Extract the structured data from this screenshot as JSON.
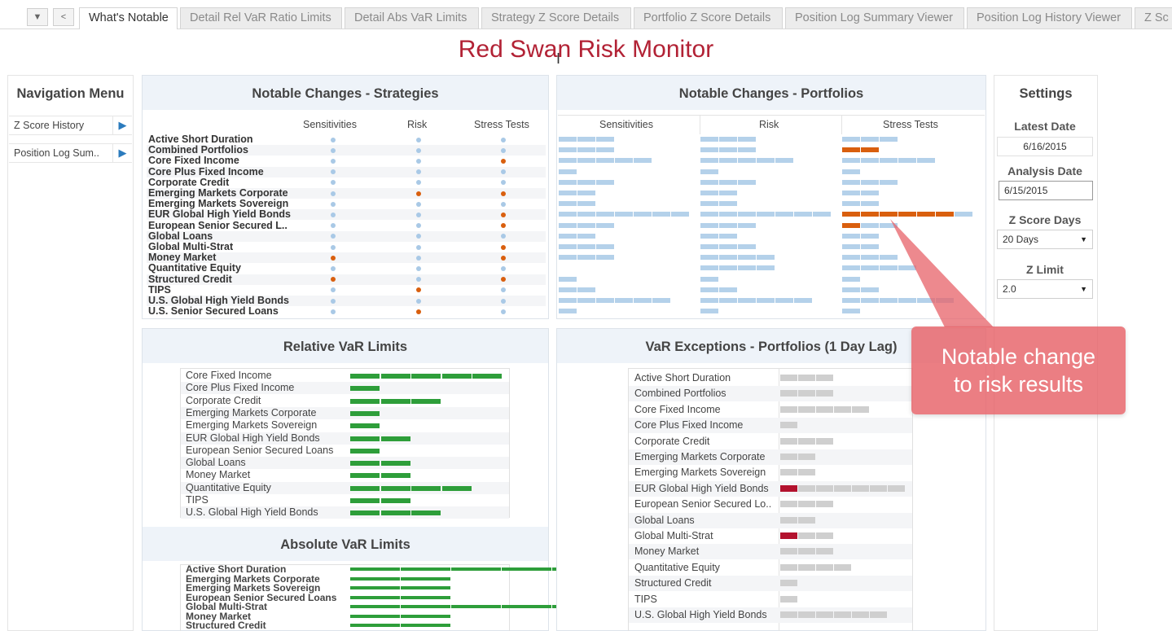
{
  "tabs": {
    "items": [
      "What's Notable",
      "Detail Rel VaR Ratio Limits",
      "Detail Abs VaR Limits",
      "Strategy Z Score Details",
      "Portfolio Z Score Details",
      "Position Log Summary Viewer",
      "Position Log History Viewer",
      "Z Sc"
    ],
    "active": "What's Notable"
  },
  "title": "Red Swan Risk Monitor",
  "nav": {
    "title": "Navigation Menu",
    "items": [
      "Z Score History",
      "Position Log Sum.."
    ]
  },
  "strategies": {
    "title": "Notable Changes - Strategies",
    "columns": [
      "Sensitivities",
      "Risk",
      "Stress Tests"
    ],
    "rows": [
      {
        "name": "Active Short Duration",
        "flags": [
          "b",
          "b",
          "b"
        ]
      },
      {
        "name": "Combined Portfolios",
        "flags": [
          "b",
          "b",
          "b"
        ]
      },
      {
        "name": "Core Fixed Income",
        "flags": [
          "b",
          "b",
          "o"
        ]
      },
      {
        "name": "Core Plus Fixed Income",
        "flags": [
          "b",
          "b",
          "b"
        ]
      },
      {
        "name": "Corporate Credit",
        "flags": [
          "b",
          "b",
          "b"
        ]
      },
      {
        "name": "Emerging Markets Corporate",
        "flags": [
          "b",
          "o",
          "o"
        ]
      },
      {
        "name": "Emerging Markets Sovereign",
        "flags": [
          "b",
          "b",
          "b"
        ]
      },
      {
        "name": "EUR Global High Yield Bonds",
        "flags": [
          "b",
          "b",
          "o"
        ]
      },
      {
        "name": "European Senior Secured L..",
        "flags": [
          "b",
          "b",
          "o"
        ]
      },
      {
        "name": "Global Loans",
        "flags": [
          "b",
          "b",
          "b"
        ]
      },
      {
        "name": "Global Multi-Strat",
        "flags": [
          "b",
          "b",
          "o"
        ]
      },
      {
        "name": "Money Market",
        "flags": [
          "o",
          "b",
          "o"
        ]
      },
      {
        "name": "Quantitative Equity",
        "flags": [
          "b",
          "b",
          "b"
        ]
      },
      {
        "name": "Structured Credit",
        "flags": [
          "o",
          "b",
          "o"
        ]
      },
      {
        "name": "TIPS",
        "flags": [
          "b",
          "o",
          "b"
        ]
      },
      {
        "name": "U.S. Global High Yield Bonds",
        "flags": [
          "b",
          "b",
          "b"
        ]
      },
      {
        "name": "U.S. Senior Secured Loans",
        "flags": [
          "b",
          "o",
          "b"
        ]
      }
    ]
  },
  "portfolios": {
    "title": "Notable Changes - Portfolios",
    "columns": [
      "Sensitivities",
      "Risk",
      "Stress Tests"
    ],
    "rows": [
      {
        "sens": 3,
        "risk": 3,
        "stress": 3,
        "stress_orange": 0
      },
      {
        "sens": 3,
        "risk": 3,
        "stress": 2,
        "stress_orange": 2
      },
      {
        "sens": 5,
        "risk": 5,
        "stress": 5,
        "stress_orange": 0
      },
      {
        "sens": 1,
        "risk": 1,
        "stress": 1,
        "stress_orange": 0
      },
      {
        "sens": 3,
        "risk": 3,
        "stress": 3,
        "stress_orange": 0
      },
      {
        "sens": 2,
        "risk": 2,
        "stress": 2,
        "stress_orange": 0
      },
      {
        "sens": 2,
        "risk": 2,
        "stress": 2,
        "stress_orange": 0
      },
      {
        "sens": 7,
        "risk": 7,
        "stress": 7,
        "stress_orange": 6
      },
      {
        "sens": 3,
        "risk": 3,
        "stress": 3,
        "stress_orange": 1
      },
      {
        "sens": 2,
        "risk": 2,
        "stress": 2,
        "stress_orange": 0
      },
      {
        "sens": 3,
        "risk": 3,
        "stress": 2,
        "stress_orange": 0
      },
      {
        "sens": 3,
        "risk": 4,
        "stress": 3,
        "stress_orange": 0
      },
      {
        "sens": 0,
        "risk": 4,
        "stress": 4,
        "stress_orange": 0
      },
      {
        "sens": 1,
        "risk": 1,
        "stress": 1,
        "stress_orange": 0
      },
      {
        "sens": 2,
        "risk": 2,
        "stress": 2,
        "stress_orange": 0
      },
      {
        "sens": 6,
        "risk": 6,
        "stress": 6,
        "stress_orange": 0
      },
      {
        "sens": 1,
        "risk": 1,
        "stress": 1,
        "stress_orange": 0
      }
    ]
  },
  "relative_var": {
    "title": "Relative VaR Limits",
    "rows": [
      {
        "name": "Core Fixed Income",
        "value": 5
      },
      {
        "name": "Core Plus Fixed Income",
        "value": 1
      },
      {
        "name": "Corporate Credit",
        "value": 3
      },
      {
        "name": "Emerging Markets Corporate",
        "value": 1
      },
      {
        "name": "Emerging Markets Sovereign",
        "value": 1
      },
      {
        "name": "EUR Global High Yield Bonds",
        "value": 2
      },
      {
        "name": "European Senior Secured Loans",
        "value": 1
      },
      {
        "name": "Global Loans",
        "value": 2
      },
      {
        "name": "Money Market",
        "value": 2
      },
      {
        "name": "Quantitative Equity",
        "value": 4
      },
      {
        "name": "TIPS",
        "value": 2
      },
      {
        "name": "U.S. Global High Yield Bonds",
        "value": 3
      }
    ]
  },
  "absolute_var": {
    "title": "Absolute VaR Limits",
    "rows": [
      {
        "name": "Active Short Duration",
        "value": 5
      },
      {
        "name": "Emerging Markets Corporate",
        "value": 2
      },
      {
        "name": "Emerging Markets Sovereign",
        "value": 2
      },
      {
        "name": "European Senior Secured Loans",
        "value": 2
      },
      {
        "name": "Global Multi-Strat",
        "value": 5
      },
      {
        "name": "Money Market",
        "value": 2
      },
      {
        "name": "Structured Credit",
        "value": 2
      }
    ]
  },
  "var_exceptions": {
    "title": "VaR Exceptions - Portfolios (1 Day Lag)",
    "rows": [
      {
        "name": "Active Short Duration",
        "grey": 3,
        "red": 0
      },
      {
        "name": "Combined Portfolios",
        "grey": 3,
        "red": 0
      },
      {
        "name": "Core Fixed Income",
        "grey": 5,
        "red": 0
      },
      {
        "name": "Core Plus Fixed Income",
        "grey": 1,
        "red": 0
      },
      {
        "name": "Corporate Credit",
        "grey": 3,
        "red": 0
      },
      {
        "name": "Emerging Markets Corporate",
        "grey": 2,
        "red": 0
      },
      {
        "name": "Emerging Markets Sovereign",
        "grey": 2,
        "red": 0
      },
      {
        "name": "EUR Global High Yield Bonds",
        "grey": 6,
        "red": 1
      },
      {
        "name": "European Senior Secured Lo..",
        "grey": 3,
        "red": 0
      },
      {
        "name": "Global Loans",
        "grey": 2,
        "red": 0
      },
      {
        "name": "Global Multi-Strat",
        "grey": 2,
        "red": 1
      },
      {
        "name": "Money Market",
        "grey": 3,
        "red": 0
      },
      {
        "name": "Quantitative Equity",
        "grey": 4,
        "red": 0
      },
      {
        "name": "Structured Credit",
        "grey": 1,
        "red": 0
      },
      {
        "name": "TIPS",
        "grey": 1,
        "red": 0
      },
      {
        "name": "U.S. Global High Yield Bonds",
        "grey": 6,
        "red": 0
      }
    ]
  },
  "settings": {
    "title": "Settings",
    "latest_date_label": "Latest Date",
    "latest_date": "6/16/2015",
    "analysis_date_label": "Analysis Date",
    "analysis_date": "6/15/2015",
    "z_score_days_label": "Z Score Days",
    "z_score_days": "20 Days",
    "z_limit_label": "Z Limit",
    "z_limit": "2.0"
  },
  "callout": {
    "line1": "Notable change",
    "line2": "to risk results"
  },
  "colors": {
    "title": "#b22235",
    "flag": "#d95f0e",
    "normal": "#b4d1ea",
    "limit": "#2e9e3a",
    "exception": "#b3122e",
    "callout": "#e76268"
  }
}
